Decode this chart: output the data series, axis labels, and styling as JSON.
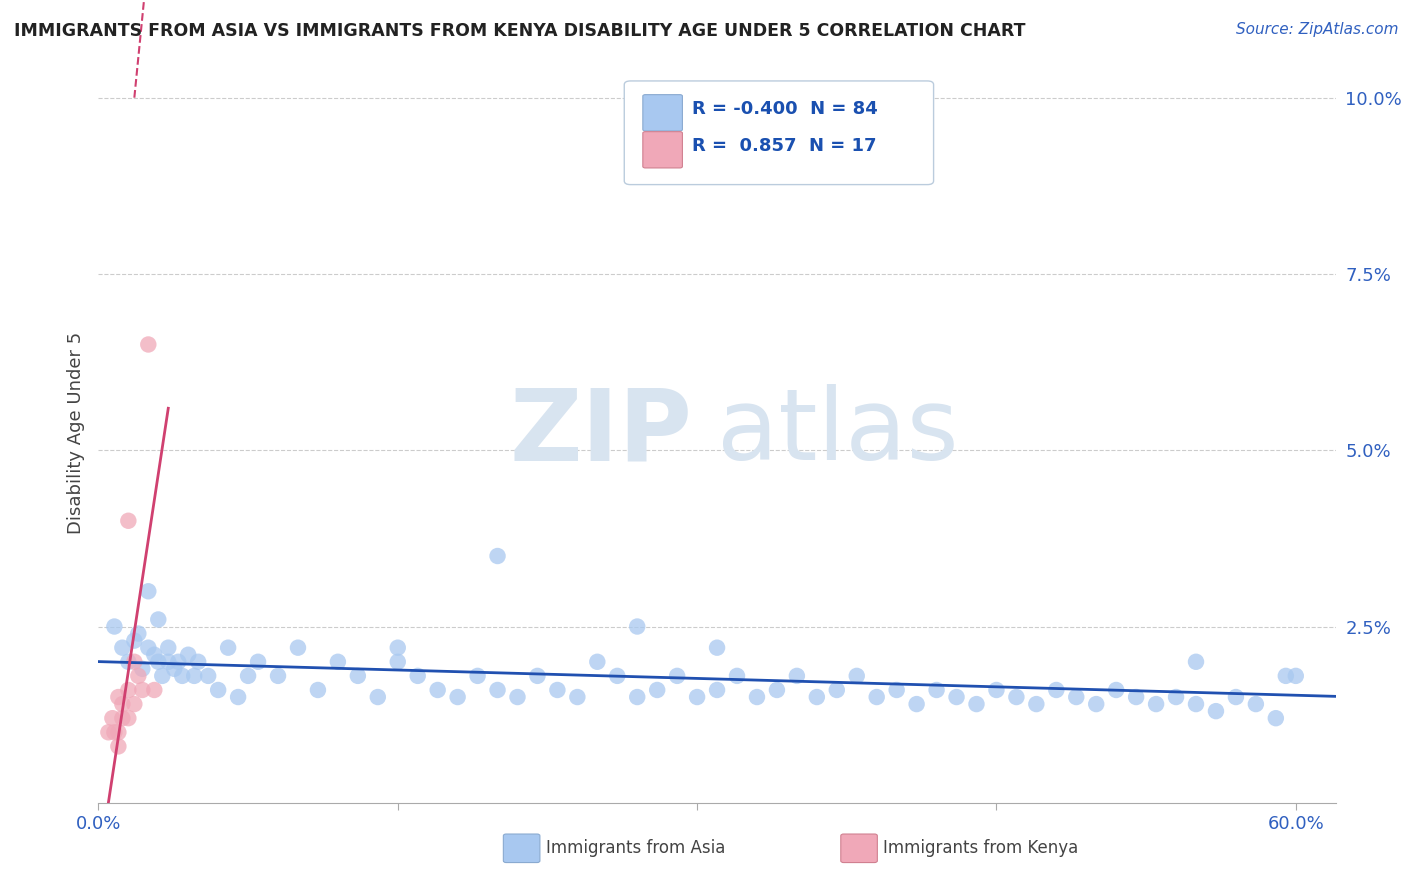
{
  "title": "IMMIGRANTS FROM ASIA VS IMMIGRANTS FROM KENYA DISABILITY AGE UNDER 5 CORRELATION CHART",
  "source": "Source: ZipAtlas.com",
  "ylabel": "Disability Age Under 5",
  "legend_label_1": "Immigrants from Asia",
  "legend_label_2": "Immigrants from Kenya",
  "R_asia": -0.4,
  "N_asia": 84,
  "R_kenya": 0.857,
  "N_kenya": 17,
  "xlim": [
    0.0,
    0.62
  ],
  "ylim": [
    0.0,
    0.105
  ],
  "yticks": [
    0.025,
    0.05,
    0.075,
    0.1
  ],
  "ytick_labels": [
    "2.5%",
    "5.0%",
    "7.5%",
    "10.0%"
  ],
  "xticks": [
    0.0,
    0.15,
    0.3,
    0.45,
    0.6
  ],
  "xtick_labels": [
    "0.0%",
    "",
    "",
    "",
    "60.0%"
  ],
  "color_asia": "#a8c8f0",
  "color_kenya": "#f0a8b8",
  "trendline_color_asia": "#2050b0",
  "trendline_color_kenya": "#d04070",
  "background_color": "#ffffff",
  "watermark_zip": "ZIP",
  "watermark_atlas": "atlas",
  "asia_x": [
    0.008,
    0.012,
    0.015,
    0.018,
    0.02,
    0.022,
    0.025,
    0.028,
    0.03,
    0.032,
    0.035,
    0.038,
    0.04,
    0.042,
    0.045,
    0.048,
    0.05,
    0.055,
    0.06,
    0.065,
    0.07,
    0.075,
    0.08,
    0.09,
    0.1,
    0.11,
    0.12,
    0.13,
    0.14,
    0.15,
    0.16,
    0.17,
    0.18,
    0.19,
    0.2,
    0.21,
    0.22,
    0.23,
    0.24,
    0.25,
    0.26,
    0.27,
    0.28,
    0.29,
    0.3,
    0.31,
    0.32,
    0.33,
    0.34,
    0.35,
    0.36,
    0.37,
    0.38,
    0.39,
    0.4,
    0.41,
    0.42,
    0.43,
    0.44,
    0.45,
    0.46,
    0.47,
    0.48,
    0.49,
    0.5,
    0.51,
    0.52,
    0.53,
    0.54,
    0.55,
    0.56,
    0.57,
    0.58,
    0.59,
    0.6,
    0.025,
    0.03,
    0.035,
    0.15,
    0.2,
    0.27,
    0.31,
    0.55,
    0.595
  ],
  "asia_y": [
    0.025,
    0.022,
    0.02,
    0.023,
    0.024,
    0.019,
    0.022,
    0.021,
    0.02,
    0.018,
    0.022,
    0.019,
    0.02,
    0.018,
    0.021,
    0.018,
    0.02,
    0.018,
    0.016,
    0.022,
    0.015,
    0.018,
    0.02,
    0.018,
    0.022,
    0.016,
    0.02,
    0.018,
    0.015,
    0.02,
    0.018,
    0.016,
    0.015,
    0.018,
    0.016,
    0.015,
    0.018,
    0.016,
    0.015,
    0.02,
    0.018,
    0.015,
    0.016,
    0.018,
    0.015,
    0.016,
    0.018,
    0.015,
    0.016,
    0.018,
    0.015,
    0.016,
    0.018,
    0.015,
    0.016,
    0.014,
    0.016,
    0.015,
    0.014,
    0.016,
    0.015,
    0.014,
    0.016,
    0.015,
    0.014,
    0.016,
    0.015,
    0.014,
    0.015,
    0.014,
    0.013,
    0.015,
    0.014,
    0.012,
    0.018,
    0.03,
    0.026,
    0.02,
    0.022,
    0.035,
    0.025,
    0.022,
    0.02,
    0.018
  ],
  "kenya_x": [
    0.005,
    0.007,
    0.008,
    0.01,
    0.01,
    0.012,
    0.012,
    0.015,
    0.015,
    0.018,
    0.018,
    0.02,
    0.022,
    0.025,
    0.028,
    0.01,
    0.015
  ],
  "kenya_y": [
    0.01,
    0.012,
    0.01,
    0.015,
    0.01,
    0.014,
    0.012,
    0.04,
    0.016,
    0.02,
    0.014,
    0.018,
    0.016,
    0.065,
    0.016,
    0.008,
    0.012
  ]
}
